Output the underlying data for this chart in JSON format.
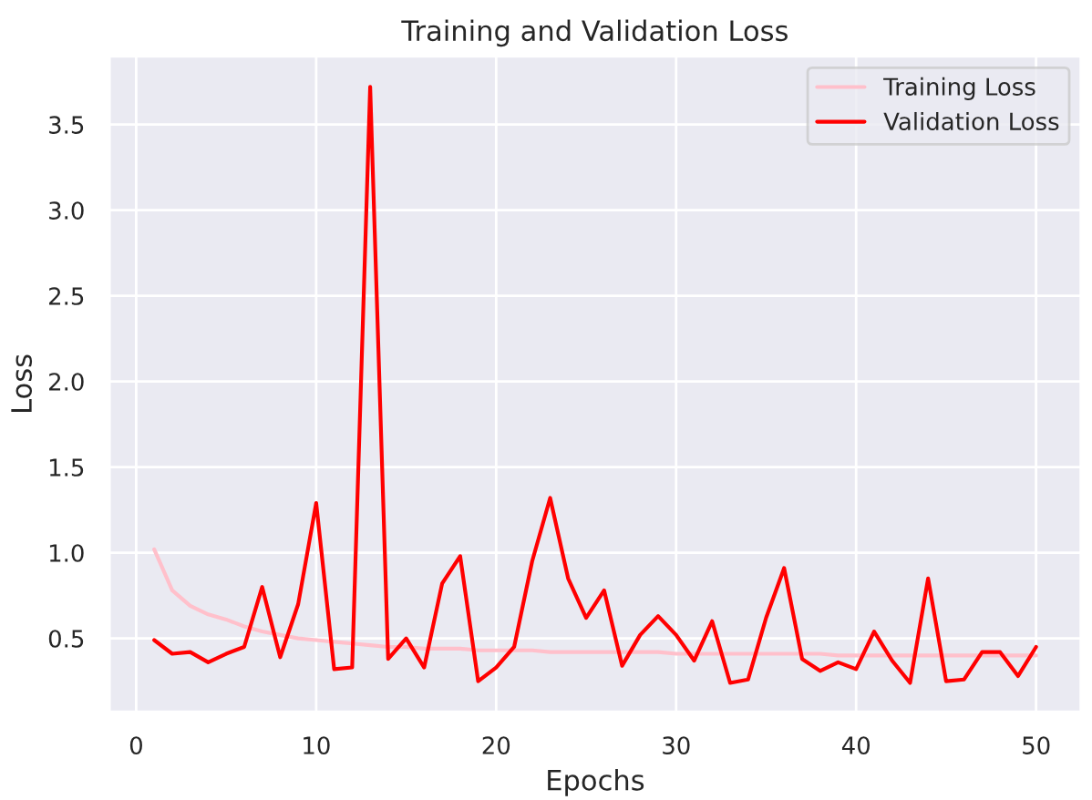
{
  "chart_data": {
    "type": "line",
    "title": "Training and Validation Loss",
    "xlabel": "Epochs",
    "ylabel": "Loss",
    "x": [
      1,
      2,
      3,
      4,
      5,
      6,
      7,
      8,
      9,
      10,
      11,
      12,
      13,
      14,
      15,
      16,
      17,
      18,
      19,
      20,
      21,
      22,
      23,
      24,
      25,
      26,
      27,
      28,
      29,
      30,
      31,
      32,
      33,
      34,
      35,
      36,
      37,
      38,
      39,
      40,
      41,
      42,
      43,
      44,
      45,
      46,
      47,
      48,
      49,
      50
    ],
    "series": [
      {
        "name": "Training Loss",
        "color": "#ffc0cb",
        "values": [
          1.02,
          0.78,
          0.69,
          0.64,
          0.61,
          0.57,
          0.54,
          0.52,
          0.5,
          0.49,
          0.48,
          0.47,
          0.46,
          0.45,
          0.45,
          0.44,
          0.44,
          0.44,
          0.43,
          0.43,
          0.43,
          0.43,
          0.42,
          0.42,
          0.42,
          0.42,
          0.42,
          0.42,
          0.42,
          0.41,
          0.41,
          0.41,
          0.41,
          0.41,
          0.41,
          0.41,
          0.41,
          0.41,
          0.4,
          0.4,
          0.4,
          0.4,
          0.4,
          0.4,
          0.4,
          0.4,
          0.4,
          0.4,
          0.4,
          0.4
        ]
      },
      {
        "name": "Validation Loss",
        "color": "#ff0000",
        "values": [
          0.49,
          0.41,
          0.42,
          0.36,
          0.41,
          0.45,
          0.8,
          0.39,
          0.7,
          1.29,
          0.32,
          0.33,
          3.72,
          0.38,
          0.5,
          0.33,
          0.82,
          0.98,
          0.25,
          0.33,
          0.45,
          0.95,
          1.32,
          0.85,
          0.62,
          0.78,
          0.34,
          0.52,
          0.63,
          0.52,
          0.37,
          0.6,
          0.24,
          0.26,
          0.62,
          0.91,
          0.38,
          0.31,
          0.36,
          0.32,
          0.54,
          0.37,
          0.24,
          0.85,
          0.25,
          0.26,
          0.42,
          0.42,
          0.28,
          0.45
        ]
      }
    ],
    "xlim": [
      -1.5,
      52.5
    ],
    "ylim": [
      0.07,
      3.9
    ],
    "xticks": [
      0,
      10,
      20,
      30,
      40,
      50
    ],
    "yticks": [
      0.5,
      {
        "value": 1,
        "label": "1.0"
      },
      1.5,
      {
        "value": 2,
        "label": "2.0"
      },
      2.5,
      {
        "value": 3,
        "label": "3.0"
      },
      3.5
    ],
    "grid": true,
    "legend": "top right",
    "marker": "none",
    "line_style": "solid"
  }
}
